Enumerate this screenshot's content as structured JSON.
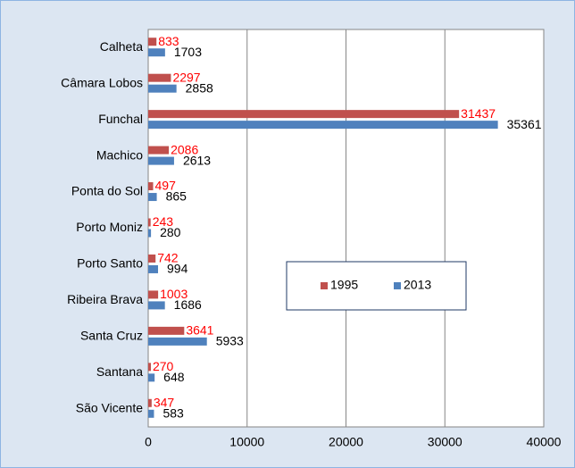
{
  "chart_data": {
    "type": "hbar",
    "categories": [
      "Calheta",
      "Câmara Lobos",
      "Funchal",
      "Machico",
      "Ponta do Sol",
      "Porto Moniz",
      "Porto Santo",
      "Ribeira Brava",
      "Santa Cruz",
      "Santana",
      "São Vicente"
    ],
    "series": [
      {
        "name": "1995",
        "color": "#c0504d",
        "label_color": "#ff0000",
        "values": [
          833,
          2297,
          31437,
          2086,
          497,
          243,
          742,
          1003,
          3641,
          270,
          347
        ]
      },
      {
        "name": "2013",
        "color": "#4f81bd",
        "label_color": "#000000",
        "values": [
          1703,
          2858,
          35361,
          2613,
          865,
          280,
          994,
          1686,
          5933,
          648,
          583
        ]
      }
    ],
    "xlim": [
      0,
      40000
    ],
    "xticks": [
      0,
      10000,
      20000,
      30000,
      40000
    ],
    "grid": true,
    "legend": "right"
  }
}
